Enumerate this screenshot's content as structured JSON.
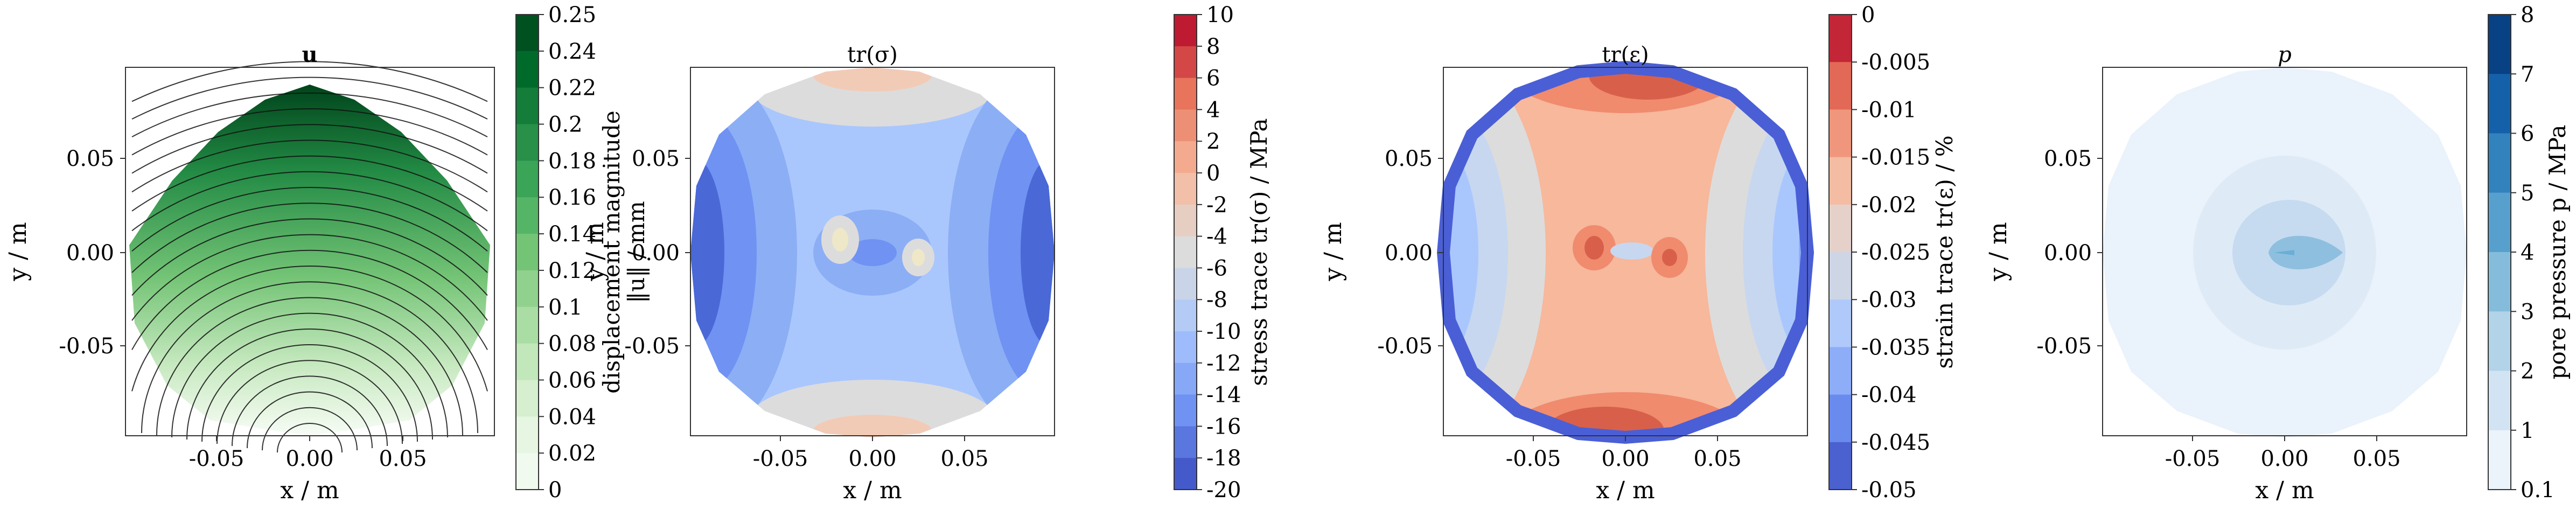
{
  "chart_data": [
    {
      "type": "heatmap",
      "title": "u",
      "xlabel": "x / m",
      "ylabel": "y / m",
      "xlim": [
        -0.1,
        0.1
      ],
      "ylim": [
        -0.1,
        0.1
      ],
      "xticks": [
        "-0.05",
        "0.00",
        "0.05"
      ],
      "yticks": [
        "0.05",
        "0.00",
        "-0.05"
      ],
      "colorbar": {
        "label": "displacement magnitude\n‖u‖ / mm",
        "label_line1": "displacement magnitude",
        "label_line2": "‖u‖ / mm",
        "ticks": [
          "0",
          "0.02",
          "0.04",
          "0.06",
          "0.08",
          "0.1",
          "0.12",
          "0.14",
          "0.16",
          "0.18",
          "0.2",
          "0.22",
          "0.24",
          "0.25"
        ],
        "range": [
          0,
          0.25
        ],
        "colormap": [
          "#f7fcf5",
          "#e5f5e0",
          "#c7e9c0",
          "#a1d99b",
          "#74c476",
          "#41ab5d",
          "#238b45",
          "#006d2c",
          "#00441b"
        ]
      },
      "field": {
        "kind": "displacement",
        "direction": "increases toward top",
        "max": 0.25,
        "min": 0.0,
        "streamlines": "black arcs"
      }
    },
    {
      "type": "heatmap",
      "title": "tr(σ)",
      "xlabel": "x / m",
      "ylabel": "y / m",
      "xlim": [
        -0.1,
        0.1
      ],
      "ylim": [
        -0.1,
        0.1
      ],
      "xticks": [
        "-0.05",
        "0.00",
        "0.05"
      ],
      "yticks": [
        "0.05",
        "0.00",
        "-0.05"
      ],
      "colorbar": {
        "label": "stress trace tr(σ) / MPa",
        "ticks": [
          "10",
          "8",
          "6",
          "4",
          "2",
          "0",
          "-2",
          "-4",
          "-6",
          "-8",
          "-10",
          "-12",
          "-14",
          "-16",
          "-18",
          "-20"
        ],
        "range": [
          -20,
          10
        ],
        "colormap": [
          "#3b4cc0",
          "#6f92f3",
          "#aac7fd",
          "#dddcdc",
          "#f7b89c",
          "#e7745b",
          "#b40426"
        ]
      }
    },
    {
      "type": "heatmap",
      "title": "tr(ε)",
      "xlabel": "x / m",
      "ylabel": "y / m",
      "xlim": [
        -0.1,
        0.1
      ],
      "ylim": [
        -0.1,
        0.1
      ],
      "xticks": [
        "-0.05",
        "0.00",
        "0.05"
      ],
      "yticks": [
        "0.05",
        "0.00",
        "-0.05"
      ],
      "colorbar": {
        "label": "strain trace tr(ε) / %",
        "ticks": [
          "0",
          "-0.005",
          "-0.01",
          "-0.015",
          "-0.02",
          "-0.025",
          "-0.03",
          "-0.035",
          "-0.04",
          "-0.045",
          "-0.05"
        ],
        "range": [
          -0.05,
          0
        ],
        "colormap": [
          "#3b4cc0",
          "#6f92f3",
          "#aac7fd",
          "#dddcdc",
          "#f7b89c",
          "#e7745b",
          "#b40426"
        ]
      }
    },
    {
      "type": "heatmap",
      "title": "p",
      "xlabel": "x / m",
      "ylabel": "y / m",
      "xlim": [
        -0.1,
        0.1
      ],
      "ylim": [
        -0.1,
        0.1
      ],
      "xticks": [
        "-0.05",
        "0.00",
        "0.05"
      ],
      "yticks": [
        "0.05",
        "0.00",
        "-0.05"
      ],
      "colorbar": {
        "label": "pore pressure p / MPa",
        "ticks": [
          "8",
          "7",
          "6",
          "5",
          "4",
          "3",
          "2",
          "1",
          "0.1"
        ],
        "range": [
          0.1,
          8
        ],
        "colormap": [
          "#f7fbff",
          "#deebf7",
          "#c6dbef",
          "#9ecae1",
          "#6baed6",
          "#4292c6",
          "#2171b5",
          "#08519c",
          "#08306b"
        ]
      }
    }
  ]
}
